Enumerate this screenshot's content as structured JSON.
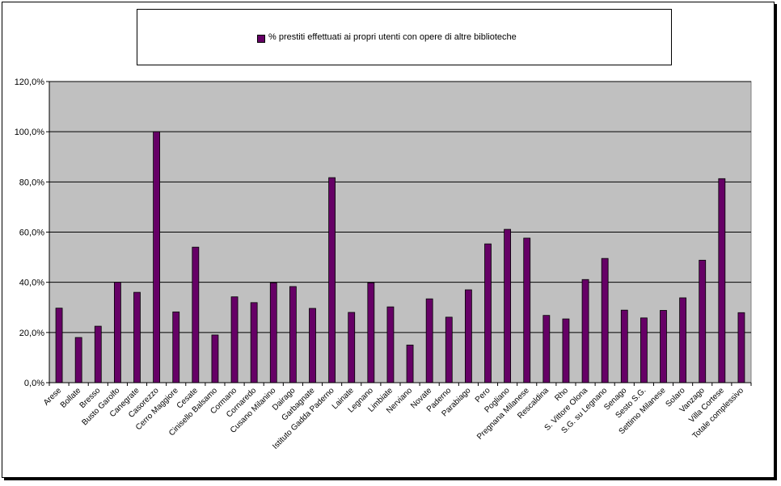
{
  "legend": {
    "label": "% prestiti effettuati ai propri utenti con opere di altre biblioteche"
  },
  "colors": {
    "bar": "#660066",
    "plot_background": "#c0c0c0",
    "grid": "#000000"
  },
  "chart_data": {
    "type": "bar",
    "title": "",
    "xlabel": "",
    "ylabel": "",
    "ylim": [
      0,
      120
    ],
    "yticks": [
      "0,0%",
      "20,0%",
      "40,0%",
      "60,0%",
      "80,0%",
      "100,0%",
      "120,0%"
    ],
    "grid": true,
    "legend_position": "top",
    "categories": [
      "Arese",
      "Bollate",
      "Bresso",
      "Busto Garolfo",
      "Canegrate",
      "Casorezzo",
      "Cerro Maggiore",
      "Cesate",
      "Cinisello Balsamo",
      "Cormano",
      "Cornaredo",
      "Cusano Milanino",
      "Dairago",
      "Garbagnate",
      "Istituto Gadda Paderno",
      "Lainate",
      "Legnano",
      "Limbiate",
      "Nerviano",
      "Novate",
      "Paderno",
      "Parabiago",
      "Pero",
      "Pogliano",
      "Pregnana Milanese",
      "Rescaldina",
      "Rho",
      "S. Vittore Olona",
      "S.G. su Legnano",
      "Senago",
      "Sesto S.G.",
      "Settimo Milanese",
      "Solaro",
      "Vanzago",
      "Villa Cortese",
      "Totale complessivo"
    ],
    "series": [
      {
        "name": "% prestiti effettuati ai propri utenti con opere di altre biblioteche",
        "values": [
          29.7,
          18.0,
          22.5,
          40.0,
          36.0,
          100.0,
          28.2,
          54.0,
          19.0,
          34.2,
          31.9,
          39.8,
          38.3,
          29.6,
          81.7,
          28.0,
          39.8,
          30.2,
          15.0,
          33.4,
          26.1,
          37.0,
          55.3,
          61.1,
          57.6,
          26.8,
          25.4,
          41.1,
          49.5,
          28.9,
          25.8,
          28.8,
          33.8,
          48.8,
          81.3,
          27.9
        ]
      }
    ]
  }
}
